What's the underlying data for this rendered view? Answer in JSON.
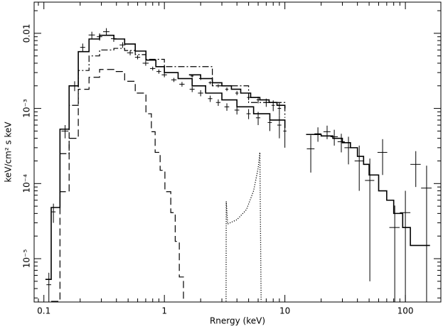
{
  "chart_data": {
    "type": "spectrum",
    "xlabel": "Rnergy (keV)",
    "ylabel": "keV/cm² s keV",
    "xscale": "log",
    "yscale": "log",
    "xlim": [
      0.083,
      197
    ],
    "ylim": [
      2.65e-06,
      0.026
    ],
    "xticks": [
      0.1,
      1,
      10,
      100
    ],
    "yticks": [
      {
        "value": 0.01,
        "label": "0.01"
      },
      {
        "value": 0.001,
        "label": "10⁻³"
      },
      {
        "value": 0.0001,
        "label": "10⁻⁴"
      },
      {
        "value": 1e-05,
        "label": "10⁻⁵"
      }
    ],
    "series": [
      {
        "style": "cross",
        "color": "#000000",
        "x": [
          0.11,
          0.12,
          0.15,
          0.18,
          0.21,
          0.25,
          0.29,
          0.33,
          0.38,
          0.45,
          0.52,
          0.6,
          0.7,
          0.8,
          0.9,
          1.0,
          1.2,
          1.4,
          1.7,
          2.0,
          2.4,
          2.8,
          3.3,
          4.0,
          5.0,
          6.0,
          7.5,
          9.0,
          10
        ],
        "xerr": [
          0.005,
          0.005,
          0.01,
          0.01,
          0.01,
          0.015,
          0.015,
          0.02,
          0.02,
          0.025,
          0.03,
          0.03,
          0.04,
          0.04,
          0.04,
          0.05,
          0.06,
          0.07,
          0.08,
          0.1,
          0.1,
          0.12,
          0.15,
          0.18,
          0.2,
          0.25,
          0.3,
          0.35,
          0.3
        ],
        "values": [
          4.5e-06,
          4.2e-05,
          0.0005,
          0.002,
          0.0065,
          0.0095,
          0.009,
          0.0105,
          0.0085,
          0.007,
          0.0055,
          0.0048,
          0.004,
          0.0034,
          0.0031,
          0.0028,
          0.0024,
          0.0021,
          0.0018,
          0.0016,
          0.00135,
          0.0012,
          0.00105,
          0.00095,
          0.00085,
          0.00075,
          0.00065,
          0.0006,
          0.0005
        ],
        "yerr": [
          2e-06,
          1.2e-05,
          0.0001,
          0.0003,
          0.0008,
          0.001,
          0.001,
          0.0012,
          0.0008,
          0.0006,
          0.0004,
          0.0003,
          0.0003,
          0.0002,
          0.0002,
          0.0002,
          0.00015,
          0.00015,
          0.00015,
          0.00015,
          0.00013,
          0.00012,
          0.00012,
          0.00012,
          0.00013,
          0.00015,
          0.00015,
          0.0002,
          0.0002
        ]
      },
      {
        "style": "cross",
        "color": "#000000",
        "x": [
          1.7,
          2.0,
          2.4,
          2.8,
          3.3,
          4.0,
          5.0,
          6.0,
          7.0,
          8.0,
          9.0
        ],
        "xerr": [
          0.05,
          0.06,
          0.07,
          0.08,
          0.1,
          0.12,
          0.15,
          0.18,
          0.2,
          0.25,
          0.3
        ],
        "values": [
          0.0027,
          0.0025,
          0.0022,
          0.002,
          0.0018,
          0.0016,
          0.0014,
          0.0013,
          0.0012,
          0.0011,
          0.001
        ],
        "yerr": [
          0.00012,
          0.00011,
          0.0001,
          0.0001,
          0.0001,
          0.0001,
          0.00011,
          0.00013,
          0.00015,
          0.00018,
          0.0002
        ]
      },
      {
        "style": "cross",
        "color": "#000000",
        "x": [
          16.4,
          18.8,
          22.4,
          25.7,
          29.4,
          33.7,
          41.4,
          50.7,
          64.7,
          81.6,
          100,
          122,
          150
        ],
        "xerr": [
          1.2,
          1.2,
          1.5,
          1.8,
          2,
          2.5,
          3.5,
          4.5,
          6,
          8,
          10,
          12,
          15
        ],
        "values": [
          0.00029,
          0.00046,
          0.00049,
          0.00042,
          0.00036,
          0.0003,
          0.0002,
          0.00011,
          0.00026,
          2.6e-05,
          4.1e-05,
          0.00018,
          8.7e-05
        ],
        "yerr": [
          0.00015,
          0.0001,
          0.0001,
          0.0001,
          0.0001,
          0.00012,
          0.00012,
          0.000105,
          0.00013,
          2.5e-05,
          3.9e-05,
          9e-05,
          8.6e-05
        ]
      },
      {
        "style": "step",
        "dash": "solid",
        "color": "#000000",
        "x": [
          0.103,
          0.115,
          0.136,
          0.162,
          0.193,
          0.237,
          0.29,
          0.381,
          0.468,
          0.573,
          0.703,
          0.85,
          1.0,
          1.3,
          1.7,
          2.2,
          3,
          4,
          5.5,
          7.5,
          10
        ],
        "values": [
          5.3e-06,
          4.8e-05,
          0.00053,
          0.002,
          0.0057,
          0.0084,
          0.0094,
          0.0084,
          0.0072,
          0.0058,
          0.0044,
          0.0036,
          0.003,
          0.0025,
          0.002,
          0.0016,
          0.0013,
          0.00105,
          0.00085,
          0.0007,
          0.00055
        ]
      },
      {
        "style": "step",
        "dash": "solid",
        "color": "#000000",
        "x": [
          1.6,
          2.0,
          2.5,
          3.0,
          3.6,
          4.3,
          5.2,
          6.2,
          7.4,
          8.6,
          10
        ],
        "values": [
          0.0028,
          0.0025,
          0.0022,
          0.002,
          0.0018,
          0.0016,
          0.0014,
          0.0013,
          0.0012,
          0.0011,
          0.001
        ]
      },
      {
        "style": "step",
        "dash": "solid",
        "color": "#000000",
        "x": [
          15,
          20,
          25,
          30,
          35,
          40,
          45,
          50,
          60,
          70,
          80,
          95,
          110,
          135,
          160
        ],
        "values": [
          0.00045,
          0.00043,
          0.0004,
          0.00035,
          0.0003,
          0.00023,
          0.00018,
          0.00013,
          8e-05,
          6e-05,
          4e-05,
          2.6e-05,
          1.5e-05,
          1.5e-05,
          1.5e-05
        ]
      },
      {
        "style": "step",
        "dash": "dashed",
        "color": "#000000",
        "x": [
          0.115,
          0.136,
          0.162,
          0.193,
          0.237,
          0.29,
          0.381,
          0.468,
          0.573,
          0.703,
          0.78,
          0.838,
          0.922,
          1.01,
          1.13,
          1.23,
          1.33,
          1.44
        ],
        "values": [
          2.7e-06,
          7.8e-05,
          0.0004,
          0.0018,
          0.0026,
          0.0033,
          0.0031,
          0.0023,
          0.0016,
          0.00085,
          0.00049,
          0.00026,
          0.00015,
          7.8e-05,
          4.1e-05,
          1.7e-05,
          5.7e-06,
          2.7e-06
        ]
      },
      {
        "style": "step",
        "dash": "dashdot",
        "color": "#000000",
        "x": [
          0.136,
          0.162,
          0.193,
          0.237,
          0.29,
          0.381,
          0.468,
          0.573,
          0.703,
          1.0,
          2.5,
          5,
          10
        ],
        "values": [
          0.00025,
          0.0011,
          0.0032,
          0.005,
          0.006,
          0.0063,
          0.0059,
          0.0052,
          0.0045,
          0.0036,
          0.002,
          0.0012,
          0.00075
        ]
      },
      {
        "style": "line",
        "dash": "dotted",
        "color": "#000000",
        "x": [
          3.25,
          3.26,
          3.35,
          4.0,
          4.8,
          5.5,
          6.0,
          6.2,
          6.35
        ],
        "values": [
          2.7e-06,
          5.8e-05,
          2.9e-05,
          3.3e-05,
          4.5e-05,
          8e-05,
          0.00016,
          0.00026,
          2.7e-06
        ]
      }
    ]
  }
}
